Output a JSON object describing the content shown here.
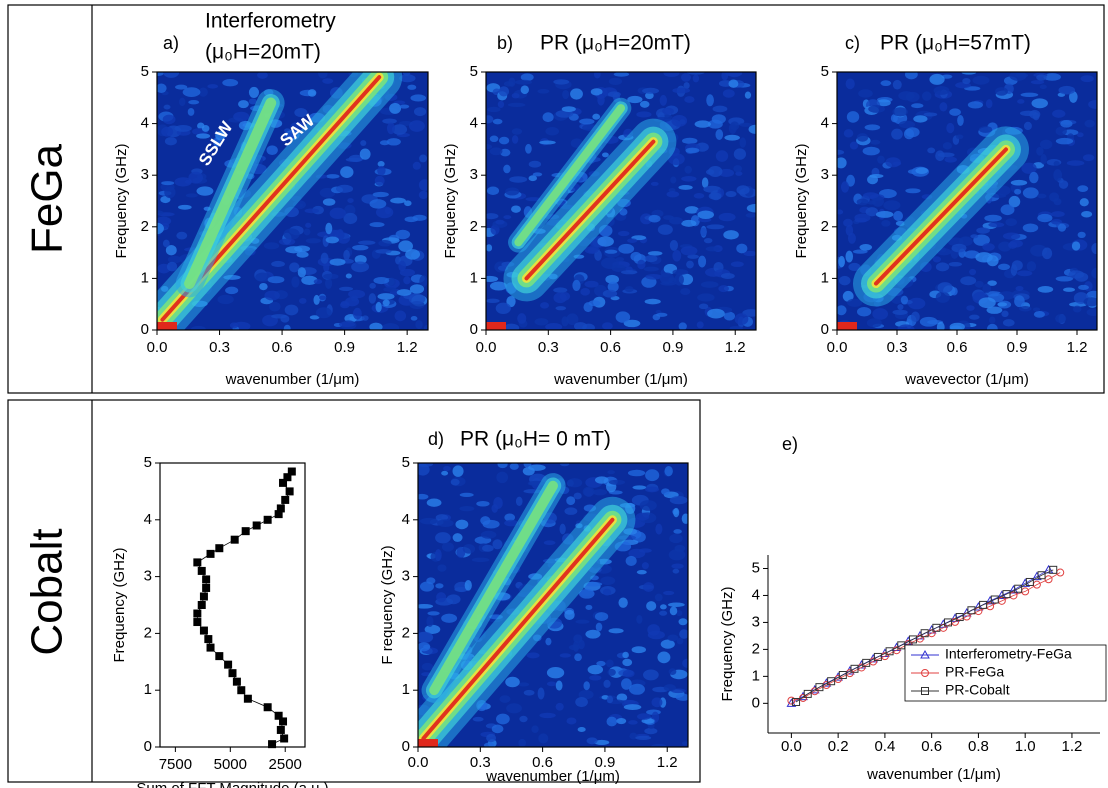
{
  "row_labels": [
    "FeGa",
    "Cobalt"
  ],
  "chart_data": [
    {
      "type": "heatmap",
      "label": "a)",
      "title": "Interferometry",
      "subtitle": "(μ₀H=20mT)",
      "xlabel": "wavenumber (1/μm)",
      "ylabel": "Frequency (GHz)",
      "xlim": [
        0,
        1.3
      ],
      "xticks": [
        {
          "value": 0,
          "label": "0.0"
        },
        0.3,
        0.6,
        0.9,
        1.2
      ],
      "ylim": [
        0,
        5
      ],
      "yticks": [
        0,
        1,
        2,
        3,
        4,
        5
      ],
      "annotations": [
        "SSLW",
        "SAW"
      ]
    },
    {
      "type": "heatmap",
      "label": "b)",
      "title": "PR (μ₀H=20mT)",
      "xlabel": "wavenumber (1/μm)",
      "ylabel": "Frequency (GHz)",
      "xlim": [
        0,
        1.3
      ],
      "xticks": [
        {
          "value": 0,
          "label": "0.0"
        },
        0.3,
        0.6,
        0.9,
        1.2
      ],
      "ylim": [
        0,
        5
      ],
      "yticks": [
        0,
        1,
        2,
        3,
        4,
        5
      ]
    },
    {
      "type": "heatmap",
      "label": "c)",
      "title": "PR (μ₀H=57mT)",
      "xlabel": "wavevector (1/μm)",
      "ylabel": "Frequency (GHz)",
      "xlim": [
        0,
        1.3
      ],
      "xticks": [
        {
          "value": 0,
          "label": "0.0"
        },
        0.3,
        0.6,
        0.9,
        1.2
      ],
      "ylim": [
        0,
        5
      ],
      "yticks": [
        0,
        1,
        2,
        3,
        4,
        5
      ]
    },
    {
      "type": "line",
      "xlabel": "Sum of FFT Magnitude (a.u.)",
      "ylabel": "Frequency (GHz)",
      "xlim": [
        8200,
        1600
      ],
      "xticks": [
        7500,
        5000,
        2500
      ],
      "ylim": [
        0,
        5
      ],
      "yticks": [
        0,
        1,
        2,
        3,
        4,
        5
      ],
      "series": [
        {
          "color": "#000000",
          "marker": "square",
          "x": [
            3100,
            2550,
            2700,
            2600,
            2800,
            3300,
            4200,
            4500,
            4700,
            4900,
            5100,
            5500,
            5900,
            6000,
            6200,
            6500,
            6500,
            6300,
            6200,
            6100,
            6100,
            6300,
            6500,
            5900,
            5500,
            4800,
            4300,
            3800,
            3300,
            2800,
            2700,
            2500,
            2300,
            2600,
            2400,
            2200
          ],
          "values": [
            0.05,
            0.15,
            0.3,
            0.45,
            0.55,
            0.7,
            0.85,
            1.0,
            1.15,
            1.3,
            1.45,
            1.6,
            1.75,
            1.9,
            2.05,
            2.2,
            2.35,
            2.5,
            2.65,
            2.8,
            2.95,
            3.1,
            3.25,
            3.4,
            3.5,
            3.65,
            3.8,
            3.9,
            4.0,
            4.1,
            4.2,
            4.35,
            4.5,
            4.65,
            4.75,
            4.85
          ]
        }
      ]
    },
    {
      "type": "heatmap",
      "label": "d)",
      "title": "PR (μ₀H= 0 mT)",
      "xlabel": "wavenumber (1/μm)",
      "ylabel": "F requency (GHz)",
      "xlim": [
        0,
        1.3
      ],
      "xticks": [
        {
          "value": 0,
          "label": "0.0"
        },
        0.3,
        0.6,
        0.9,
        1.2
      ],
      "ylim": [
        0,
        5
      ],
      "yticks": [
        0,
        1,
        2,
        3,
        4,
        5
      ]
    },
    {
      "type": "line",
      "label": "e)",
      "xlabel": "wavenumber (1/μm)",
      "ylabel": "Frequency (GHz)",
      "legend": "lower right",
      "xlim": [
        -0.1,
        1.32
      ],
      "xticks": [
        {
          "value": 0,
          "label": "0.0"
        },
        0.2,
        0.4,
        0.6,
        0.8,
        {
          "value": 1,
          "label": "1.0"
        },
        1.2
      ],
      "ylim": [
        -1.1,
        5.5
      ],
      "yticks": [
        0,
        1,
        2,
        3,
        4,
        5
      ],
      "series": [
        {
          "name": "Interferometry-FeGa",
          "color": "#3030d0",
          "marker": "triangle",
          "x": [
            0,
            0.05,
            0.1,
            0.15,
            0.2,
            0.25,
            0.3,
            0.35,
            0.4,
            0.45,
            0.5,
            0.55,
            0.6,
            0.65,
            0.7,
            0.75,
            0.8,
            0.85,
            0.9,
            0.95,
            1.0,
            1.05,
            1.1
          ],
          "values": [
            0,
            0.25,
            0.5,
            0.75,
            0.97,
            1.2,
            1.42,
            1.65,
            1.85,
            2.07,
            2.3,
            2.5,
            2.72,
            2.93,
            3.15,
            3.35,
            3.57,
            3.8,
            4.0,
            4.2,
            4.45,
            4.7,
            4.95
          ]
        },
        {
          "name": "PR-FeGa",
          "color": "#e04040",
          "marker": "circle",
          "x": [
            0,
            0.05,
            0.1,
            0.15,
            0.2,
            0.25,
            0.3,
            0.35,
            0.4,
            0.45,
            0.5,
            0.55,
            0.6,
            0.65,
            0.7,
            0.75,
            0.8,
            0.85,
            0.9,
            0.95,
            1.0,
            1.05,
            1.1,
            1.15
          ],
          "values": [
            0.1,
            0.2,
            0.45,
            0.68,
            0.9,
            1.12,
            1.33,
            1.55,
            1.75,
            1.97,
            2.2,
            2.4,
            2.6,
            2.8,
            3.02,
            3.22,
            3.42,
            3.6,
            3.8,
            4.0,
            4.15,
            4.4,
            4.6,
            4.85
          ]
        },
        {
          "name": "PR-Cobalt",
          "color": "#333333",
          "marker": "square",
          "x": [
            0.02,
            0.07,
            0.12,
            0.17,
            0.22,
            0.27,
            0.32,
            0.37,
            0.42,
            0.47,
            0.52,
            0.57,
            0.62,
            0.67,
            0.72,
            0.77,
            0.82,
            0.87,
            0.92,
            0.97,
            1.02,
            1.07,
            1.12
          ],
          "values": [
            0.05,
            0.35,
            0.6,
            0.82,
            1.05,
            1.28,
            1.5,
            1.72,
            1.93,
            2.15,
            2.37,
            2.6,
            2.8,
            3.0,
            3.2,
            3.45,
            3.65,
            3.85,
            4.05,
            4.25,
            4.5,
            4.75,
            4.95
          ]
        }
      ]
    }
  ]
}
